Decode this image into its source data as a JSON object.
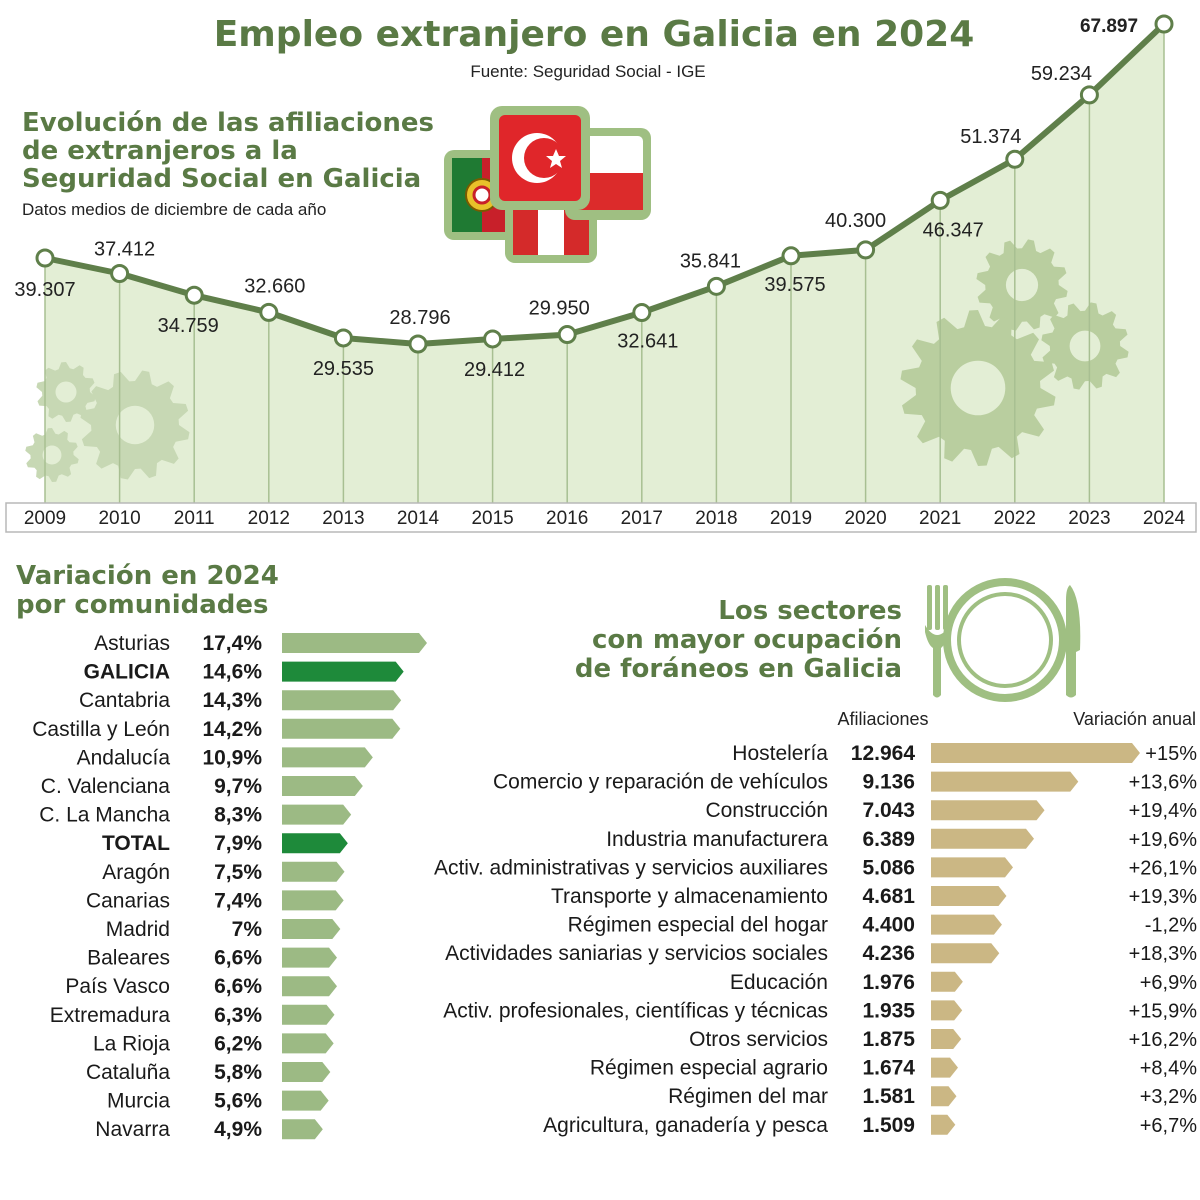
{
  "title": "Empleo extranjero en Galicia en 2024",
  "source": "Fuente: Seguridad Social - IGE",
  "colors": {
    "accent_green": "#5a7a45",
    "line_green": "#5f7f4a",
    "area_fill": "#e3eed5",
    "region_bar": "#9cba84",
    "region_highlight": "#1e8a3a",
    "sector_bar": "#cbb784"
  },
  "icons": [
    "flags-illustration",
    "gears-icon",
    "plate-cutlery-icon"
  ],
  "chart_data": [
    {
      "type": "area",
      "title": "Evolución de las afiliaciones de extranjeros a la Seguridad Social en Galicia",
      "title_lines": [
        "Evolución de las afiliaciones",
        "de extranjeros a la",
        "Seguridad Social en Galicia"
      ],
      "subtitle": "Datos medios de diciembre de cada año",
      "x": [
        "2009",
        "2010",
        "2011",
        "2012",
        "2013",
        "2014",
        "2015",
        "2016",
        "2017",
        "2018",
        "2019",
        "2020",
        "2021",
        "2022",
        "2023",
        "2024"
      ],
      "values": [
        39307,
        37412,
        34759,
        32660,
        29535,
        28796,
        29412,
        29950,
        32641,
        35841,
        39575,
        40300,
        46347,
        51374,
        59234,
        67897
      ],
      "labels": [
        "39.307",
        "37.412",
        "34.759",
        "32.660",
        "29.535",
        "28.796",
        "29.412",
        "29.950",
        "32.641",
        "35.841",
        "39.575",
        "40.300",
        "46.347",
        "51.374",
        "59.234",
        "67.897"
      ],
      "ylim": [
        0,
        70000
      ]
    },
    {
      "type": "bar",
      "title": "Variación en 2024 por comunidades",
      "title_lines": [
        "Variación en 2024",
        "por comunidades"
      ],
      "categories": [
        "Asturias",
        "GALICIA",
        "Cantabria",
        "Castilla y León",
        "Andalucía",
        "C. Valenciana",
        "C. La Mancha",
        "TOTAL",
        "Aragón",
        "Canarias",
        "Madrid",
        "Baleares",
        "País Vasco",
        "Extremadura",
        "La Rioja",
        "Cataluña",
        "Murcia",
        "Navarra"
      ],
      "values": [
        17.4,
        14.6,
        14.3,
        14.2,
        10.9,
        9.7,
        8.3,
        7.9,
        7.5,
        7.4,
        7.0,
        6.6,
        6.6,
        6.3,
        6.2,
        5.8,
        5.6,
        4.9
      ],
      "labels": [
        "17,4%",
        "14,6%",
        "14,3%",
        "14,2%",
        "10,9%",
        "9,7%",
        "8,3%",
        "7,9%",
        "7,5%",
        "7,4%",
        "7%",
        "6,6%",
        "6,6%",
        "6,3%",
        "6,2%",
        "5,8%",
        "5,6%",
        "4,9%"
      ],
      "highlight": [
        "GALICIA",
        "TOTAL"
      ]
    },
    {
      "type": "bar",
      "title": "Los sectores con mayor ocupación de foráneos en Galicia",
      "title_lines": [
        "Los sectores",
        "con mayor ocupación",
        "de foráneos en Galicia"
      ],
      "col_affiliations": "Afiliaciones",
      "col_variation": "Variación anual",
      "categories": [
        "Hostelería",
        "Comercio y reparación de vehículos",
        "Construcción",
        "Industria manufacturera",
        "Activ. administrativas y servicios auxiliares",
        "Transporte y almacenamiento",
        "Régimen especial del hogar",
        "Actividades saniarias y servicios sociales",
        "Educación",
        "Activ. profesionales, científicas y técnicas",
        "Otros servicios",
        "Régimen especial agrario",
        "Régimen del mar",
        "Agricultura, ganadería y pesca"
      ],
      "values": [
        12964,
        9136,
        7043,
        6389,
        5086,
        4681,
        4400,
        4236,
        1976,
        1935,
        1875,
        1674,
        1581,
        1509
      ],
      "value_labels": [
        "12.964",
        "9.136",
        "7.043",
        "6.389",
        "5.086",
        "4.681",
        "4.400",
        "4.236",
        "1.976",
        "1.935",
        "1.875",
        "1.674",
        "1.581",
        "1.509"
      ],
      "variation_labels": [
        "+15%",
        "+13,6%",
        "+19,4%",
        "+19,6%",
        "+26,1%",
        "+19,3%",
        "-1,2%",
        "+18,3%",
        "+6,9%",
        "+15,9%",
        "+16,2%",
        "+8,4%",
        "+3,2%",
        "+6,7%"
      ]
    }
  ]
}
